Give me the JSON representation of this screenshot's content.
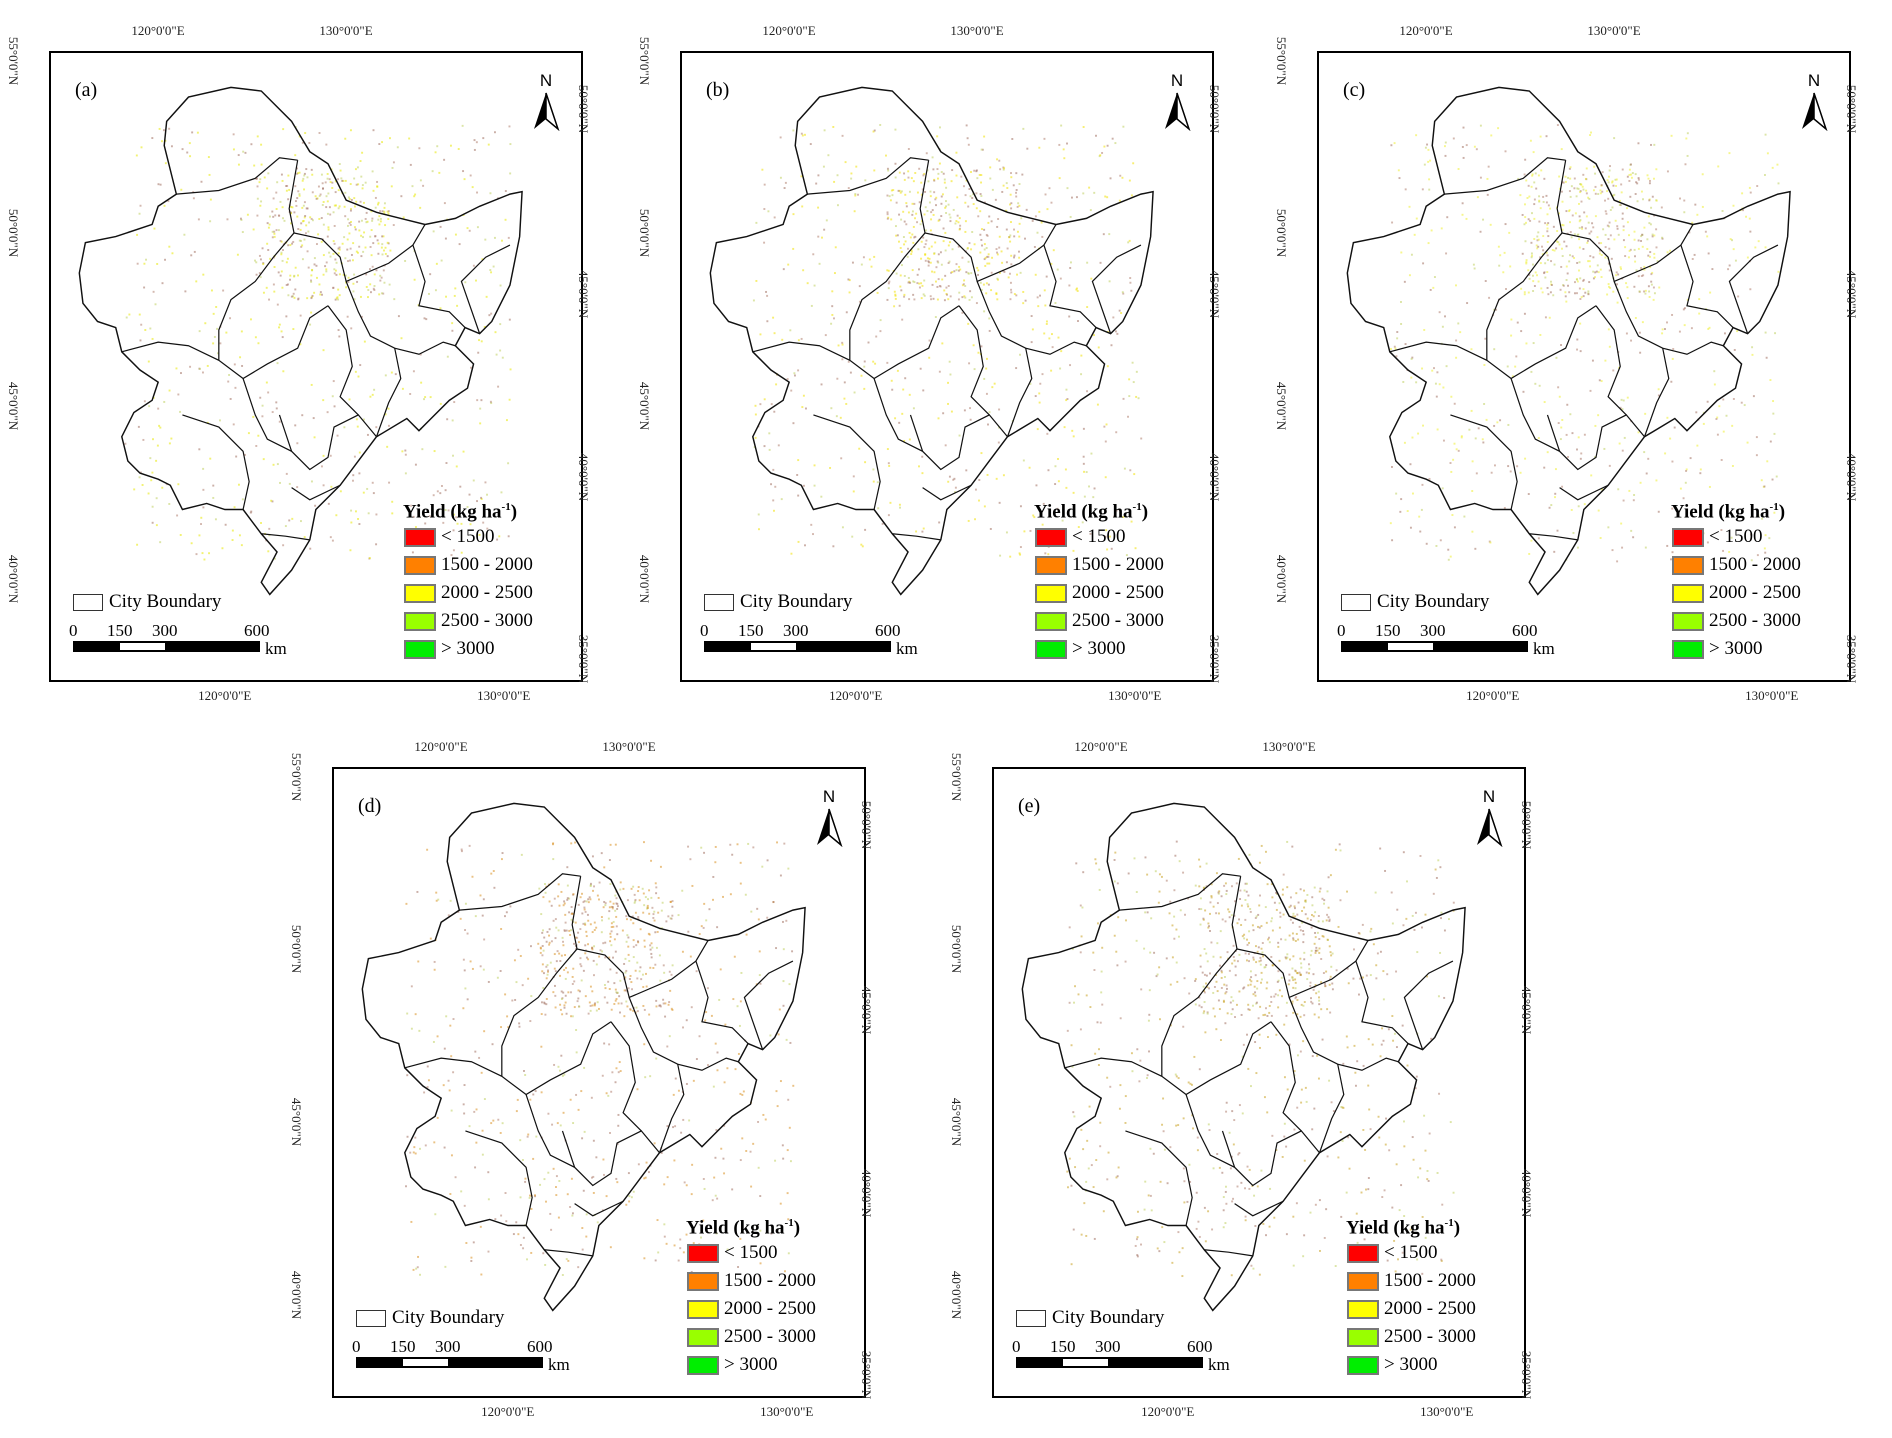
{
  "panels": [
    {
      "label": "(a)",
      "accent": "#e8e800"
    },
    {
      "label": "(b)",
      "accent": "#f0e000"
    },
    {
      "label": "(c)",
      "accent": "#eeee30"
    },
    {
      "label": "(d)",
      "accent": "#d89020"
    },
    {
      "label": "(e)",
      "accent": "#c8a020"
    }
  ],
  "axes": {
    "top_lon": [
      "120°0'0\"E",
      "130°0'0\"E"
    ],
    "bottom_lon": [
      "120°0'0\"E",
      "130°0'0\"E"
    ],
    "left_lat": [
      "55°0'0\"N",
      "50°0'0\"N",
      "45°0'0\"N",
      "40°0'0\"N"
    ],
    "right_lat": [
      "50°0'0\"N",
      "45°0'0\"N",
      "40°0'0\"N",
      "35°0'0\"N"
    ]
  },
  "north": "N",
  "legend": {
    "title": "Yield (kg ha",
    "title_sup": "-1",
    "title_end": ")",
    "items": [
      {
        "label": "< 1500",
        "color": "#ff0000"
      },
      {
        "label": "1500 - 2000",
        "color": "#ff8000"
      },
      {
        "label": "2000 - 2500",
        "color": "#ffff00"
      },
      {
        "label": "2500 - 3000",
        "color": "#99ff00"
      },
      {
        "label": "> 3000",
        "color": "#00ee00"
      }
    ]
  },
  "city_boundary": "City Boundary",
  "scale": {
    "ticks": [
      "0",
      "150",
      "300",
      "600"
    ],
    "unit": "km"
  }
}
